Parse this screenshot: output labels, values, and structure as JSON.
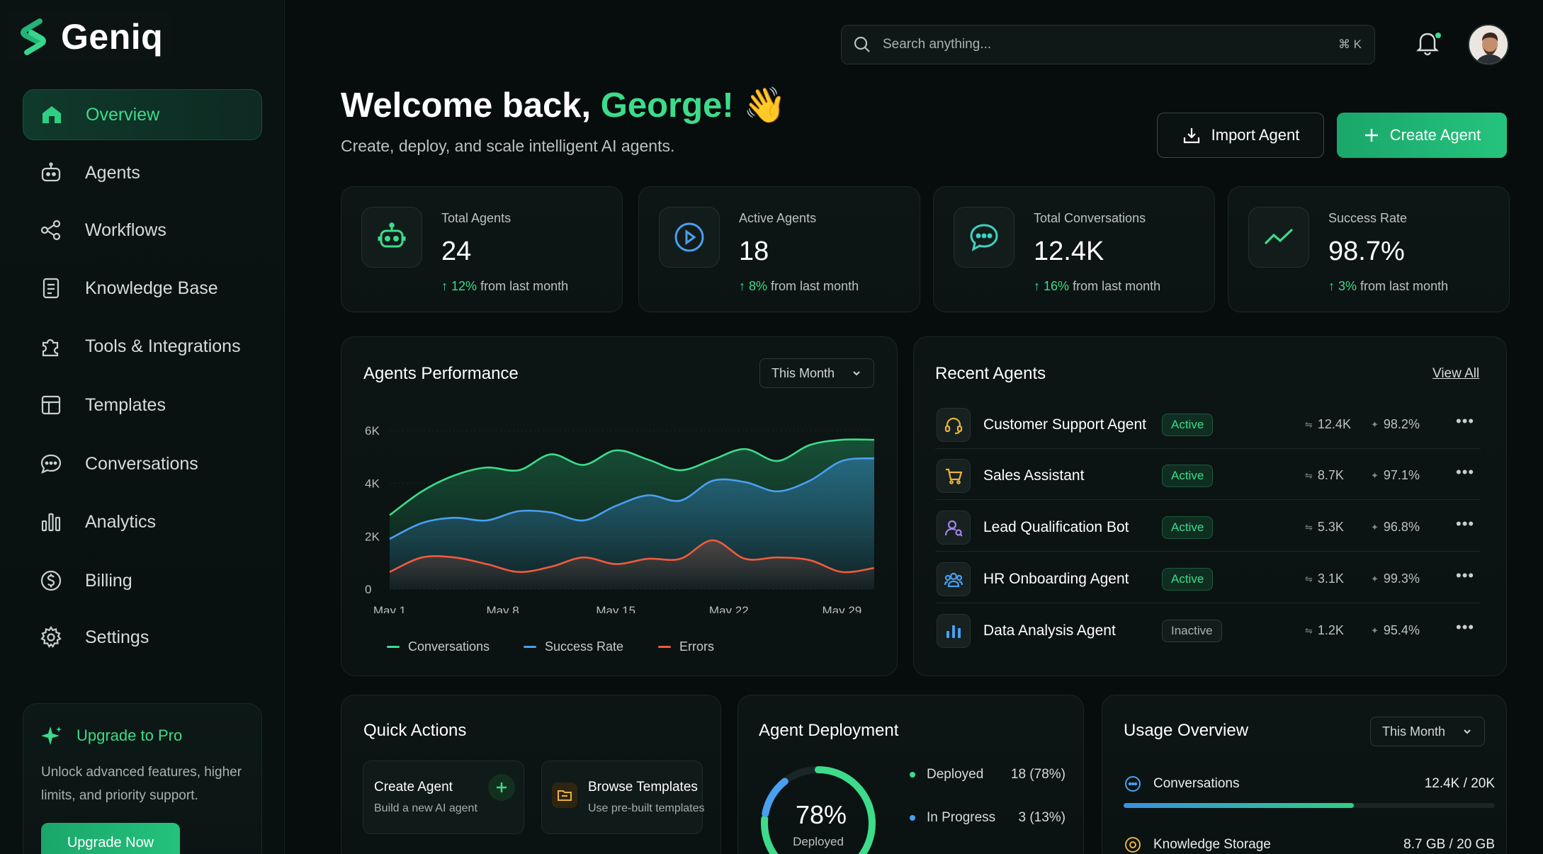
{
  "app": {
    "name": "Geniq"
  },
  "sidebar": {
    "items": [
      {
        "label": "Overview",
        "icon": "home-icon",
        "active": true
      },
      {
        "label": "Agents",
        "icon": "robot-icon"
      },
      {
        "label": "Workflows",
        "icon": "workflow-icon"
      },
      {
        "label": "Knowledge Base",
        "icon": "document-icon"
      },
      {
        "label": "Tools & Integrations",
        "icon": "puzzle-icon"
      },
      {
        "label": "Templates",
        "icon": "templates-icon"
      },
      {
        "label": "Conversations",
        "icon": "chat-icon"
      },
      {
        "label": "Analytics",
        "icon": "bar-chart-icon"
      },
      {
        "label": "Billing",
        "icon": "dollar-icon"
      },
      {
        "label": "Settings",
        "icon": "gear-icon"
      }
    ],
    "upgrade": {
      "title": "Upgrade to Pro",
      "description": "Unlock advanced features, higher limits, and priority support.",
      "button": "Upgrade Now"
    }
  },
  "topbar": {
    "search_placeholder": "Search anything...",
    "search_shortcut": "⌘ K",
    "notification_dot": true
  },
  "header": {
    "welcome_prefix": "Welcome back, ",
    "user_name": "George!",
    "wave": "👋",
    "subtitle": "Create, deploy, and scale intelligent AI agents.",
    "import_button": "Import Agent",
    "create_button": "Create Agent"
  },
  "stats": [
    {
      "label": "Total Agents",
      "value": "24",
      "delta": "12%",
      "delta_suffix": "from last month",
      "icon": "robot-icon"
    },
    {
      "label": "Active Agents",
      "value": "18",
      "delta": "8%",
      "delta_suffix": "from last month",
      "icon": "play-circle-icon"
    },
    {
      "label": "Total Conversations",
      "value": "12.4K",
      "delta": "16%",
      "delta_suffix": "from last month",
      "icon": "chat-bubble-icon"
    },
    {
      "label": "Success Rate",
      "value": "98.7%",
      "delta": "3%",
      "delta_suffix": "from last month",
      "icon": "trend-up-icon"
    }
  ],
  "performance": {
    "title": "Agents Performance",
    "range": "This Month",
    "legend": [
      "Conversations",
      "Success Rate",
      "Errors"
    ]
  },
  "chart_data": {
    "type": "area",
    "title": "Agents Performance",
    "xlabel": "",
    "ylabel": "",
    "ylim": [
      0,
      6000
    ],
    "y_ticks": [
      "0",
      "2K",
      "4K",
      "6K"
    ],
    "x_ticks": [
      "May 1",
      "May 8",
      "May 15",
      "May 22",
      "May 29"
    ],
    "x": [
      1,
      3,
      5,
      7,
      9,
      11,
      13,
      15,
      17,
      19,
      21,
      23,
      25,
      27,
      29,
      31
    ],
    "series": [
      {
        "name": "Conversations",
        "color": "#3ddc8a",
        "values": [
          2800,
          3700,
          4300,
          4600,
          4500,
          5100,
          4700,
          5250,
          4900,
          4500,
          4900,
          5300,
          4850,
          5450,
          5650,
          5650
        ]
      },
      {
        "name": "Success Rate",
        "color": "#4a9ff0",
        "values": [
          1900,
          2500,
          2700,
          2600,
          2950,
          2900,
          2600,
          3150,
          3550,
          3350,
          4100,
          4050,
          3700,
          4100,
          4850,
          4950
        ]
      },
      {
        "name": "Errors",
        "color": "#f05a3c",
        "values": [
          650,
          1200,
          1200,
          950,
          650,
          850,
          1200,
          950,
          1150,
          1150,
          1850,
          1150,
          1200,
          1100,
          650,
          800
        ]
      }
    ],
    "grid": true,
    "legend_position": "bottom"
  },
  "recent_agents": {
    "title": "Recent Agents",
    "view_all": "View All",
    "rows": [
      {
        "name": "Customer Support Agent",
        "status": "Active",
        "conversations": "12.4K",
        "rate": "98.2%",
        "icon": "headset-icon",
        "icon_color": "#e8b23a"
      },
      {
        "name": "Sales Assistant",
        "status": "Active",
        "conversations": "8.7K",
        "rate": "97.1%",
        "icon": "cart-icon",
        "icon_color": "#e8b23a"
      },
      {
        "name": "Lead Qualification Bot",
        "status": "Active",
        "conversations": "5.3K",
        "rate": "96.8%",
        "icon": "user-search-icon",
        "icon_color": "#a683ea"
      },
      {
        "name": "HR Onboarding Agent",
        "status": "Active",
        "conversations": "3.1K",
        "rate": "99.3%",
        "icon": "users-icon",
        "icon_color": "#4a9ff0"
      },
      {
        "name": "Data Analysis Agent",
        "status": "Inactive",
        "conversations": "1.2K",
        "rate": "95.4%",
        "icon": "bar-chart-icon",
        "icon_color": "#4a9ff0"
      }
    ]
  },
  "quick_actions": {
    "title": "Quick Actions",
    "items": [
      {
        "title": "Create Agent",
        "subtitle": "Build a new AI agent",
        "icon": "plus-icon"
      },
      {
        "title": "Browse Templates",
        "subtitle": "Use pre-built templates",
        "icon": "folder-icon"
      }
    ]
  },
  "deployment": {
    "title": "Agent Deployment",
    "percent_label": "78%",
    "percent": 78,
    "caption": "Deployed",
    "items": [
      {
        "label": "Deployed",
        "value": "18 (78%)",
        "color": "#3ddc8a"
      },
      {
        "label": "In Progress",
        "value": "3 (13%)",
        "color": "#4a9ff0"
      }
    ]
  },
  "usage": {
    "title": "Usage Overview",
    "range": "This Month",
    "items": [
      {
        "label": "Conversations",
        "used": "12.4K",
        "total": "20K",
        "fraction": 0.62,
        "icon": "chat-dots-icon",
        "color": "#4a9ff0"
      },
      {
        "label": "Knowledge Storage",
        "used": "8.7 GB",
        "total": "20 GB",
        "fraction": 0.435,
        "icon": "database-icon",
        "color": "#e8b23a"
      }
    ]
  }
}
